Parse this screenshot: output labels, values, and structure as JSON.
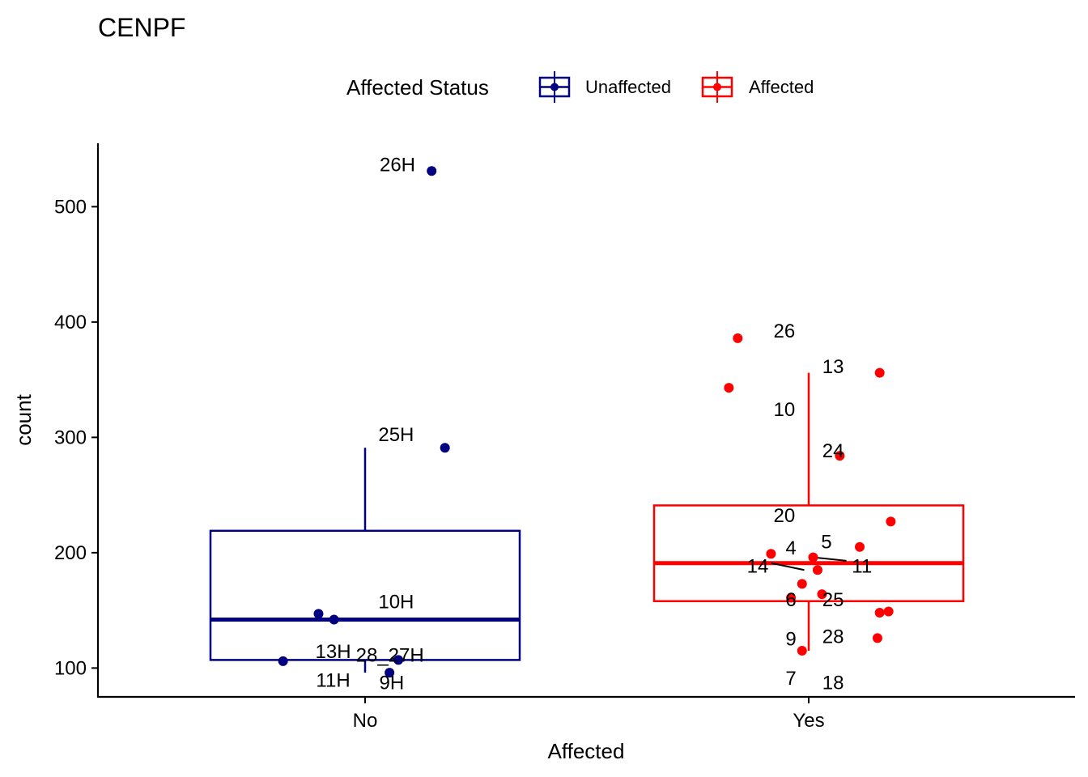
{
  "chart_data": {
    "type": "boxplot",
    "title": "CENPF",
    "xlabel": "Affected",
    "ylabel": "count",
    "ylim": [
      75,
      555
    ],
    "yticks": [
      100,
      200,
      300,
      400,
      500
    ],
    "categories": [
      "No",
      "Yes"
    ],
    "legend": {
      "title": "Affected Status",
      "position": "top",
      "entries": [
        {
          "name": "Unaffected",
          "color": "#000080"
        },
        {
          "name": "Affected",
          "color": "#ff0000"
        }
      ]
    },
    "groups": [
      {
        "category": "No",
        "status": "Unaffected",
        "color": "#000080",
        "box": {
          "whisker_low": 96,
          "q1": 107,
          "median": 142,
          "q3": 219,
          "whisker_high": 291
        },
        "points": [
          {
            "x": 0.15,
            "y": 531,
            "label": "26H",
            "lx": 0.073,
            "ly": 537
          },
          {
            "x": 0.18,
            "y": 291,
            "label": "25H",
            "lx": 0.07,
            "ly": 303
          },
          {
            "x": -0.105,
            "y": 147,
            "label": "10H",
            "lx": 0.07,
            "ly": 158
          },
          {
            "x": -0.07,
            "y": 142,
            "label": "13H",
            "lx": -0.072,
            "ly": 115
          },
          {
            "x": -0.185,
            "y": 106,
            "label": "11H",
            "lx": -0.072,
            "ly": 90
          },
          {
            "x": 0.075,
            "y": 107,
            "label": "28_27H",
            "lx": 0.056,
            "ly": 112
          },
          {
            "x": 0.055,
            "y": 96,
            "label": "9H",
            "lx": 0.06,
            "ly": 88
          }
        ],
        "leaders": [
          {
            "x1": 0.075,
            "y1": 107,
            "x2": 0.06,
            "y2": 109
          }
        ]
      },
      {
        "category": "Yes",
        "status": "Affected",
        "color": "#ff0000",
        "box": {
          "whisker_low": 115,
          "q1": 158,
          "median": 191,
          "q3": 241,
          "whisker_high": 356
        },
        "points": [
          {
            "x": -0.16,
            "y": 386,
            "label": "26",
            "lx": -0.055,
            "ly": 393
          },
          {
            "x": 0.16,
            "y": 356,
            "label": "13",
            "lx": 0.055,
            "ly": 362
          },
          {
            "x": -0.18,
            "y": 343,
            "label": "10",
            "lx": -0.055,
            "ly": 325
          },
          {
            "x": 0.07,
            "y": 284,
            "label": "24",
            "lx": 0.055,
            "ly": 289
          },
          {
            "x": 0.185,
            "y": 227,
            "label": "20",
            "lx": -0.055,
            "ly": 233
          },
          {
            "x": 0.115,
            "y": 205,
            "label": "5",
            "lx": 0.04,
            "ly": 210
          },
          {
            "x": -0.085,
            "y": 199,
            "label": "4",
            "lx": -0.04,
            "ly": 205
          },
          {
            "x": 0.01,
            "y": 196,
            "label": "11",
            "lx": 0.12,
            "ly": 189
          },
          {
            "x": 0.02,
            "y": 185,
            "label": "14",
            "lx": -0.115,
            "ly": 189
          },
          {
            "x": -0.015,
            "y": 173,
            "label": "25",
            "lx": 0.055,
            "ly": 160
          },
          {
            "x": 0.03,
            "y": 164,
            "label": "6",
            "lx": -0.04,
            "ly": 160
          },
          {
            "x": -0.04,
            "y": 161,
            "label": "9",
            "lx": -0.04,
            "ly": 126
          },
          {
            "x": 0.16,
            "y": 148,
            "label": "28",
            "lx": 0.055,
            "ly": 128
          },
          {
            "x": 0.18,
            "y": 149,
            "label": "7",
            "lx": -0.04,
            "ly": 92
          },
          {
            "x": 0.155,
            "y": 126,
            "label": "18",
            "lx": 0.055,
            "ly": 88
          },
          {
            "x": -0.015,
            "y": 115,
            "label": "",
            "lx": 0,
            "ly": 0
          }
        ],
        "leaders": [
          {
            "x1": -0.085,
            "y1": 191,
            "x2": -0.01,
            "y2": 185
          },
          {
            "x1": 0.01,
            "y1": 196,
            "x2": 0.085,
            "y2": 193
          }
        ]
      }
    ]
  }
}
